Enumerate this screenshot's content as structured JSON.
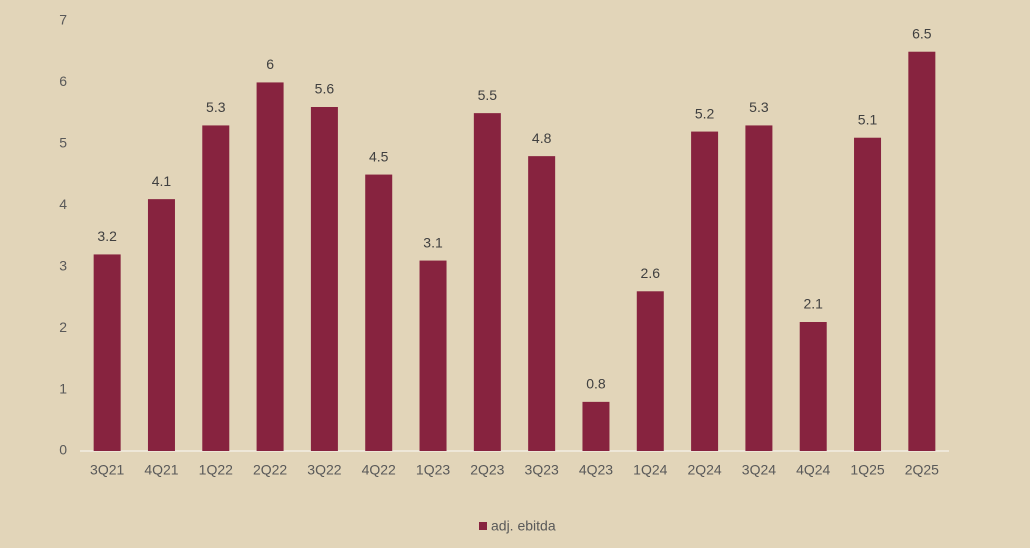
{
  "chart_data": {
    "type": "bar",
    "categories": [
      "3Q21",
      "4Q21",
      "1Q22",
      "2Q22",
      "3Q22",
      "4Q22",
      "1Q23",
      "2Q23",
      "3Q23",
      "4Q23",
      "1Q24",
      "2Q24",
      "3Q24",
      "4Q24",
      "1Q25",
      "2Q25"
    ],
    "series": [
      {
        "name": "adj. ebitda",
        "color": "#87233f",
        "values": [
          3.2,
          4.1,
          5.3,
          6,
          5.6,
          4.5,
          3.1,
          5.5,
          4.8,
          0.8,
          2.6,
          5.2,
          5.3,
          2.1,
          5.1,
          6.5
        ]
      }
    ],
    "ylim": [
      0,
      7
    ],
    "yticks": [
      0,
      1,
      2,
      3,
      4,
      5,
      6,
      7
    ],
    "grid": false,
    "legend": "bottom"
  }
}
